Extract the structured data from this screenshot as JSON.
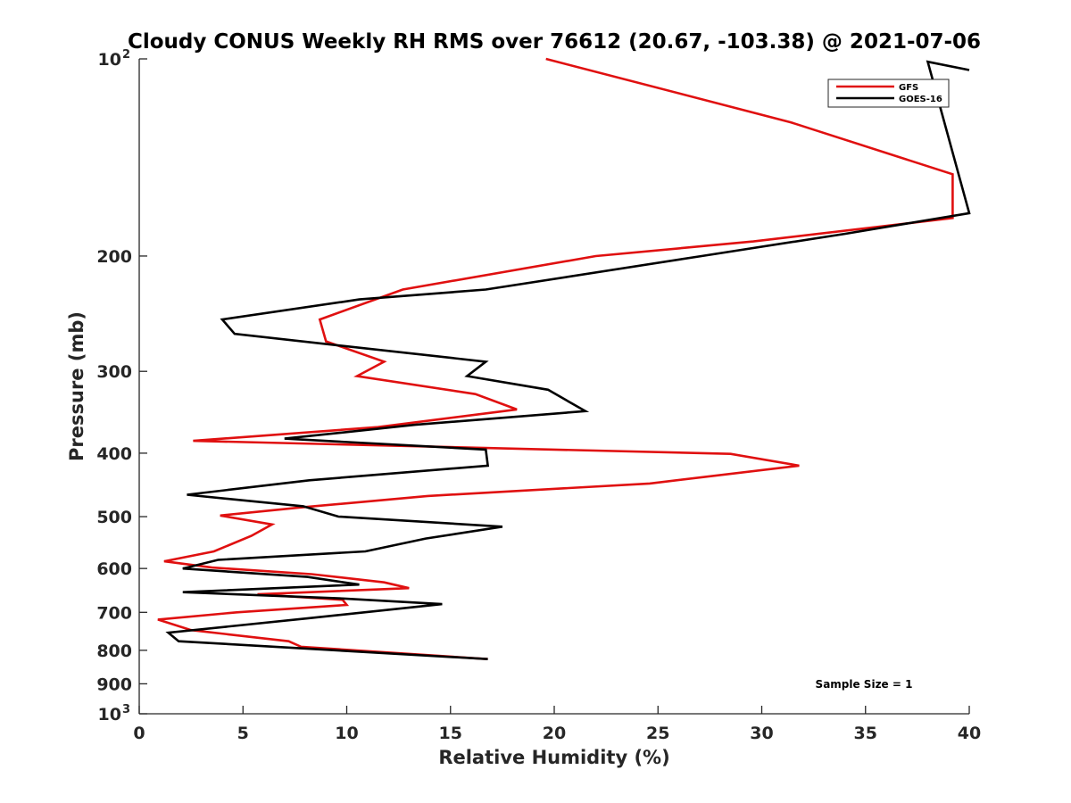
{
  "chart_data": {
    "type": "line",
    "title": "Cloudy CONUS Weekly RH RMS over 76612 (20.67, -103.38) @ 2021-07-06",
    "xlabel": "Relative Humidity (%)",
    "ylabel": "Pressure (mb)",
    "xlim": [
      0,
      40
    ],
    "ylim": [
      100,
      1000
    ],
    "yscale": "log",
    "y_reversed": true,
    "x_ticks": [
      0,
      5,
      10,
      15,
      20,
      25,
      30,
      35,
      40
    ],
    "x_tick_labels": [
      "0",
      "5",
      "10",
      "15",
      "20",
      "25",
      "30",
      "35",
      "40"
    ],
    "y_ticks": [
      100,
      200,
      300,
      400,
      500,
      600,
      700,
      800,
      900,
      1000
    ],
    "y_tick_labels": [
      {
        "base": "10",
        "exp": "2"
      },
      {
        "base": "200"
      },
      {
        "base": "300"
      },
      {
        "base": "400"
      },
      {
        "base": "500"
      },
      {
        "base": "600"
      },
      {
        "base": "700"
      },
      {
        "base": "800"
      },
      {
        "base": "900"
      },
      {
        "base": "10",
        "exp": "3"
      }
    ],
    "legend": {
      "position": "top-right",
      "entries": [
        "GFS",
        "GOES-16"
      ]
    },
    "series": [
      {
        "name": "GFS",
        "color": "#e01010",
        "points": [
          [
            19.6,
            100
          ],
          [
            31.4,
            125
          ],
          [
            39.2,
            150
          ],
          [
            39.2,
            175
          ],
          [
            29.6,
            190
          ],
          [
            22.0,
            200
          ],
          [
            12.7,
            225
          ],
          [
            8.7,
            250
          ],
          [
            9.0,
            270
          ],
          [
            11.8,
            290
          ],
          [
            10.5,
            305
          ],
          [
            16.2,
            325
          ],
          [
            18.2,
            343
          ],
          [
            11.5,
            365
          ],
          [
            2.6,
            383
          ],
          [
            28.5,
            401
          ],
          [
            31.8,
            418
          ],
          [
            24.6,
            445
          ],
          [
            13.9,
            465
          ],
          [
            7.8,
            484
          ],
          [
            3.9,
            498
          ],
          [
            6.4,
            514
          ],
          [
            5.4,
            535
          ],
          [
            3.6,
            565
          ],
          [
            1.2,
            585
          ],
          [
            3.5,
            598
          ],
          [
            8.3,
            612
          ],
          [
            11.8,
            630
          ],
          [
            13.0,
            643
          ],
          [
            5.7,
            657
          ],
          [
            9.8,
            670
          ],
          [
            10.0,
            682
          ],
          [
            4.7,
            700
          ],
          [
            0.9,
            718
          ],
          [
            2.5,
            745
          ],
          [
            7.2,
            775
          ],
          [
            7.8,
            790
          ],
          [
            16.8,
            825
          ]
        ]
      },
      {
        "name": "GOES-16",
        "color": "#000000",
        "points": [
          [
            40.0,
            104
          ],
          [
            38.0,
            101
          ],
          [
            40.0,
            172
          ],
          [
            34.0,
            185
          ],
          [
            27.1,
            200
          ],
          [
            16.7,
            225
          ],
          [
            10.6,
            233
          ],
          [
            4.0,
            250
          ],
          [
            4.6,
            263
          ],
          [
            16.7,
            290
          ],
          [
            15.8,
            305
          ],
          [
            19.7,
            320
          ],
          [
            21.5,
            345
          ],
          [
            13.3,
            362
          ],
          [
            7.0,
            380
          ],
          [
            16.7,
            395
          ],
          [
            16.8,
            418
          ],
          [
            8.2,
            440
          ],
          [
            2.3,
            463
          ],
          [
            7.9,
            482
          ],
          [
            9.6,
            500
          ],
          [
            17.5,
            518
          ],
          [
            13.8,
            540
          ],
          [
            10.9,
            565
          ],
          [
            3.8,
            582
          ],
          [
            2.1,
            600
          ],
          [
            8.1,
            618
          ],
          [
            10.6,
            635
          ],
          [
            2.1,
            652
          ],
          [
            9.9,
            667
          ],
          [
            14.6,
            680
          ],
          [
            8.1,
            715
          ],
          [
            1.4,
            752
          ],
          [
            1.9,
            775
          ],
          [
            16.8,
            825
          ]
        ]
      }
    ],
    "annotations": [
      "Sample Size = 1"
    ]
  }
}
